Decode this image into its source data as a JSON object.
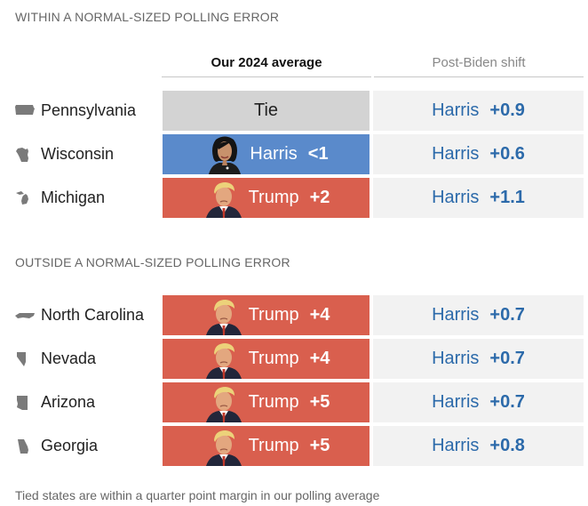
{
  "sections": [
    {
      "label": "WITHIN A NORMAL-SIZED POLLING ERROR",
      "rows": [
        {
          "state": "Pennsylvania",
          "icon": "pennsylvania-icon",
          "leader": "tie",
          "leader_label": "Tie",
          "margin": "",
          "shift_name": "Harris",
          "shift_value": "+0.9"
        },
        {
          "state": "Wisconsin",
          "icon": "wisconsin-icon",
          "leader": "harris",
          "leader_label": "Harris",
          "margin": "<1",
          "shift_name": "Harris",
          "shift_value": "+0.6"
        },
        {
          "state": "Michigan",
          "icon": "michigan-icon",
          "leader": "trump",
          "leader_label": "Trump",
          "margin": "+2",
          "shift_name": "Harris",
          "shift_value": "+1.1"
        }
      ]
    },
    {
      "label": "OUTSIDE A NORMAL-SIZED POLLING ERROR",
      "rows": [
        {
          "state": "North Carolina",
          "icon": "north-carolina-icon",
          "leader": "trump",
          "leader_label": "Trump",
          "margin": "+4",
          "shift_name": "Harris",
          "shift_value": "+0.7"
        },
        {
          "state": "Nevada",
          "icon": "nevada-icon",
          "leader": "trump",
          "leader_label": "Trump",
          "margin": "+4",
          "shift_name": "Harris",
          "shift_value": "+0.7"
        },
        {
          "state": "Arizona",
          "icon": "arizona-icon",
          "leader": "trump",
          "leader_label": "Trump",
          "margin": "+5",
          "shift_name": "Harris",
          "shift_value": "+0.7"
        },
        {
          "state": "Georgia",
          "icon": "georgia-icon",
          "leader": "trump",
          "leader_label": "Trump",
          "margin": "+5",
          "shift_name": "Harris",
          "shift_value": "+0.8"
        }
      ]
    }
  ],
  "columns": {
    "average": "Our 2024 average",
    "shift": "Post-Biden shift"
  },
  "footnote": "Tied states are within a quarter point margin in our polling average",
  "colors": {
    "harris": "#5a8acb",
    "trump": "#d95f4e",
    "tie": "#d3d3d3",
    "shift_text": "#2c6aaa",
    "shift_bg": "#f2f2f2"
  }
}
